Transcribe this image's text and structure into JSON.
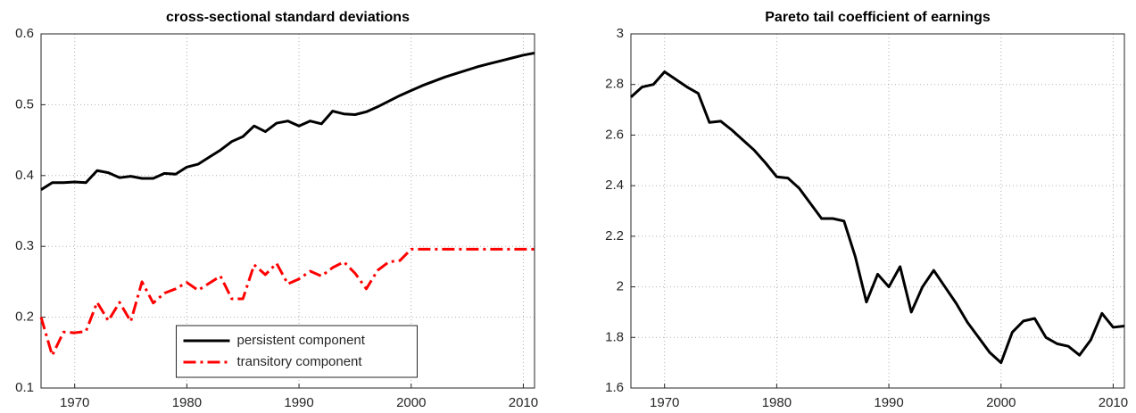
{
  "chart_data": [
    {
      "type": "line",
      "title": "cross-sectional standard deviations",
      "x": [
        1967,
        1968,
        1969,
        1970,
        1971,
        1972,
        1973,
        1974,
        1975,
        1976,
        1977,
        1978,
        1979,
        1980,
        1981,
        1982,
        1983,
        1984,
        1985,
        1986,
        1987,
        1988,
        1989,
        1990,
        1991,
        1992,
        1993,
        1994,
        1995,
        1996,
        1997,
        1998,
        1999,
        2000,
        2001,
        2002,
        2003,
        2004,
        2005,
        2006,
        2007,
        2008,
        2009,
        2010,
        2011
      ],
      "series": [
        {
          "name": "persistent component",
          "color": "#000000",
          "linestyle": "solid",
          "values": [
            0.38,
            0.39,
            0.39,
            0.391,
            0.39,
            0.407,
            0.404,
            0.397,
            0.399,
            0.396,
            0.396,
            0.403,
            0.402,
            0.412,
            0.416,
            0.426,
            0.436,
            0.448,
            0.455,
            0.47,
            0.462,
            0.474,
            0.477,
            0.47,
            0.477,
            0.473,
            0.491,
            0.487,
            0.486,
            0.49,
            0.497,
            0.505,
            0.513,
            0.52,
            0.527,
            0.533,
            0.539,
            0.544,
            0.549,
            0.554,
            0.558,
            0.562,
            0.566,
            0.57,
            0.573
          ]
        },
        {
          "name": "transitory component",
          "color": "#ff0000",
          "linestyle": "dashdot",
          "values": [
            0.2,
            0.146,
            0.179,
            0.178,
            0.18,
            0.221,
            0.195,
            0.221,
            0.194,
            0.25,
            0.22,
            0.234,
            0.24,
            0.249,
            0.238,
            0.248,
            0.258,
            0.226,
            0.226,
            0.274,
            0.26,
            0.276,
            0.247,
            0.254,
            0.265,
            0.258,
            0.27,
            0.278,
            0.262,
            0.24,
            0.266,
            0.278,
            0.28,
            0.296,
            0.296,
            0.296,
            0.296,
            0.296,
            0.296,
            0.296,
            0.296,
            0.296,
            0.296,
            0.296,
            0.296
          ]
        }
      ],
      "xlim": [
        1967,
        2011
      ],
      "xticks": [
        1970,
        1980,
        1990,
        2000,
        2010
      ],
      "ylim": [
        0.1,
        0.6
      ],
      "yticks": [
        0.1,
        0.2,
        0.3,
        0.4,
        0.5,
        0.6
      ],
      "grid": true,
      "legend": "lower center"
    },
    {
      "type": "line",
      "title": "Pareto tail coefficient of earnings",
      "x": [
        1967,
        1968,
        1969,
        1970,
        1971,
        1972,
        1973,
        1974,
        1975,
        1976,
        1977,
        1978,
        1979,
        1980,
        1981,
        1982,
        1983,
        1984,
        1985,
        1986,
        1987,
        1988,
        1989,
        1990,
        1991,
        1992,
        1993,
        1994,
        1995,
        1996,
        1997,
        1998,
        1999,
        2000,
        2001,
        2002,
        2003,
        2004,
        2005,
        2006,
        2007,
        2008,
        2009,
        2010,
        2011
      ],
      "series": [
        {
          "color": "#000000",
          "linestyle": "solid",
          "values": [
            2.75,
            2.79,
            2.8,
            2.85,
            2.82,
            2.79,
            2.765,
            2.65,
            2.655,
            2.62,
            2.58,
            2.54,
            2.49,
            2.435,
            2.43,
            2.39,
            2.33,
            2.27,
            2.27,
            2.26,
            2.12,
            1.94,
            2.05,
            2.0,
            2.08,
            1.9,
            2.0,
            2.065,
            2.0,
            1.935,
            1.86,
            1.8,
            1.74,
            1.7,
            1.82,
            1.865,
            1.875,
            1.8,
            1.775,
            1.765,
            1.73,
            1.79,
            1.895,
            1.84,
            1.845
          ]
        }
      ],
      "xlim": [
        1967,
        2011
      ],
      "xticks": [
        1970,
        1980,
        1990,
        2000,
        2010
      ],
      "ylim": [
        1.6,
        3
      ],
      "yticks": [
        1.6,
        1.8,
        2,
        2.2,
        2.4,
        2.6,
        2.8,
        3
      ],
      "grid": true
    }
  ]
}
